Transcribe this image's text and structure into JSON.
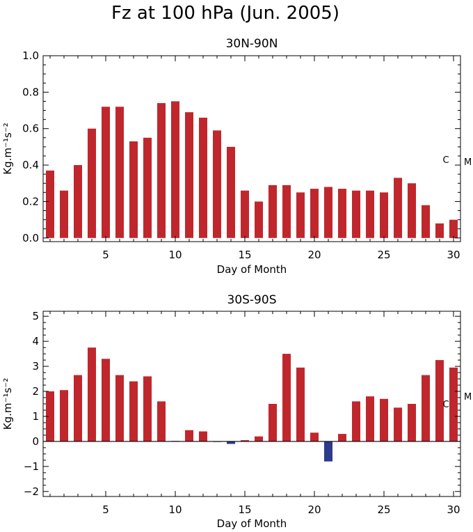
{
  "figure_title": "Fz at 100 hPa (Jun. 2005)",
  "colors": {
    "positive": "#c0272d",
    "negative": "#2e3a8c",
    "axis": "#000000"
  },
  "chart_data": [
    {
      "type": "bar",
      "title": "30N-90N",
      "xlabel": "Day of Month",
      "ylabel": "Kg.m⁻¹s⁻²",
      "xlim": [
        1,
        30
      ],
      "ylim": [
        -0.02,
        1.0
      ],
      "x_ticks": [
        5,
        10,
        15,
        20,
        25,
        30
      ],
      "y_ticks": [
        0.0,
        0.2,
        0.4,
        0.6,
        0.8,
        1.0
      ],
      "y_tick_labels": [
        "0.0",
        "0.2",
        "0.4",
        "0.6",
        "0.8",
        "1.0"
      ],
      "x": [
        1,
        2,
        3,
        4,
        5,
        6,
        7,
        8,
        9,
        10,
        11,
        12,
        13,
        14,
        15,
        16,
        17,
        18,
        19,
        20,
        21,
        22,
        23,
        24,
        25,
        26,
        27,
        28,
        29,
        30
      ],
      "values": [
        0.37,
        0.26,
        0.4,
        0.6,
        0.72,
        0.72,
        0.53,
        0.55,
        0.74,
        0.75,
        0.69,
        0.66,
        0.59,
        0.5,
        0.26,
        0.2,
        0.29,
        0.29,
        0.25,
        0.27,
        0.28,
        0.27,
        0.26,
        0.26,
        0.25,
        0.33,
        0.3,
        0.18,
        0.08,
        0.1
      ],
      "markers": {
        "C": 0.43,
        "M": 0.42
      }
    },
    {
      "type": "bar",
      "title": "30S-90S",
      "xlabel": "Day of Month",
      "ylabel": "Kg.m⁻¹s⁻²",
      "xlim": [
        1,
        30
      ],
      "ylim": [
        -2.2,
        5.2
      ],
      "x_ticks": [
        5,
        10,
        15,
        20,
        25,
        30
      ],
      "y_ticks": [
        -2,
        -1,
        0,
        1,
        2,
        3,
        4,
        5
      ],
      "y_tick_labels": [
        "−2",
        "−1",
        "0",
        "1",
        "2",
        "3",
        "4",
        "5"
      ],
      "x": [
        1,
        2,
        3,
        4,
        5,
        6,
        7,
        8,
        9,
        10,
        11,
        12,
        13,
        14,
        15,
        16,
        17,
        18,
        19,
        20,
        21,
        22,
        23,
        24,
        25,
        26,
        27,
        28,
        29,
        30
      ],
      "values": [
        2.0,
        2.05,
        2.65,
        3.75,
        3.3,
        2.65,
        2.4,
        2.6,
        1.6,
        0.02,
        0.45,
        0.4,
        0.0,
        -0.1,
        0.05,
        0.2,
        1.5,
        3.5,
        2.95,
        0.35,
        -0.8,
        0.3,
        1.6,
        1.8,
        1.7,
        1.35,
        1.5,
        2.65,
        3.25,
        2.95
      ],
      "markers": {
        "C": 1.5,
        "M": 1.8
      }
    }
  ]
}
